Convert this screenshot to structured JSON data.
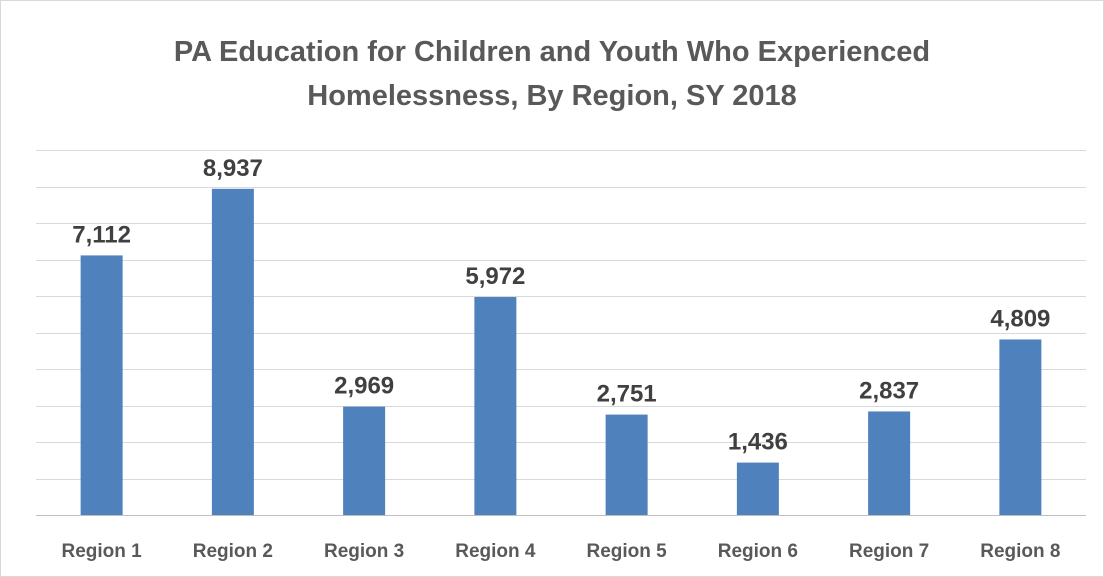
{
  "chart_data": {
    "type": "bar",
    "title": "PA Education for Children and Youth Who Experienced Homelessness, By Region, SY 2018",
    "title_lines": [
      "PA Education for Children and Youth Who Experienced",
      "Homelessness, By Region, SY 2018"
    ],
    "categories": [
      "Region 1",
      "Region 2",
      "Region 3",
      "Region 4",
      "Region 5",
      "Region 6",
      "Region 7",
      "Region 8"
    ],
    "values": [
      7112,
      8937,
      2969,
      5972,
      2751,
      1436,
      2837,
      4809
    ],
    "value_labels": [
      "7,112",
      "8,937",
      "2,969",
      "5,972",
      "2,751",
      "1,436",
      "2,837",
      "4,809"
    ],
    "xlabel": "",
    "ylabel": "",
    "ylim": [
      0,
      10000
    ],
    "grid": true,
    "legend": "none",
    "bar_color": "#4f81bd"
  }
}
